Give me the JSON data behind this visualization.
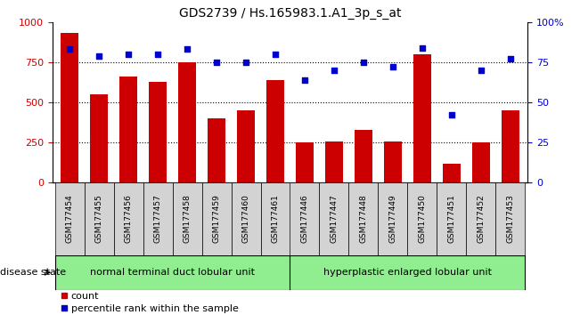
{
  "title": "GDS2739 / Hs.165983.1.A1_3p_s_at",
  "samples": [
    "GSM177454",
    "GSM177455",
    "GSM177456",
    "GSM177457",
    "GSM177458",
    "GSM177459",
    "GSM177460",
    "GSM177461",
    "GSM177446",
    "GSM177447",
    "GSM177448",
    "GSM177449",
    "GSM177450",
    "GSM177451",
    "GSM177452",
    "GSM177453"
  ],
  "counts": [
    930,
    550,
    660,
    630,
    750,
    400,
    450,
    640,
    250,
    255,
    330,
    255,
    800,
    120,
    250,
    450
  ],
  "percentiles": [
    83,
    79,
    80,
    80,
    83,
    75,
    75,
    80,
    64,
    70,
    75,
    72,
    84,
    42,
    70,
    77
  ],
  "group1_label": "normal terminal duct lobular unit",
  "group2_label": "hyperplastic enlarged lobular unit",
  "group1_count": 8,
  "group2_count": 8,
  "bar_color": "#cc0000",
  "dot_color": "#0000cc",
  "ylim_left": [
    0,
    1000
  ],
  "ylim_right": [
    0,
    100
  ],
  "yticks_left": [
    0,
    250,
    500,
    750,
    1000
  ],
  "yticks_right": [
    0,
    25,
    50,
    75,
    100
  ],
  "grid_values": [
    250,
    500,
    750
  ],
  "group1_color": "#90ee90",
  "group2_color": "#90ee90",
  "legend_count_label": "count",
  "legend_pct_label": "percentile rank within the sample",
  "disease_state_label": "disease state",
  "tick_bg_color": "#d3d3d3",
  "bar_width": 0.6,
  "figsize": [
    6.51,
    3.54
  ],
  "dpi": 100
}
